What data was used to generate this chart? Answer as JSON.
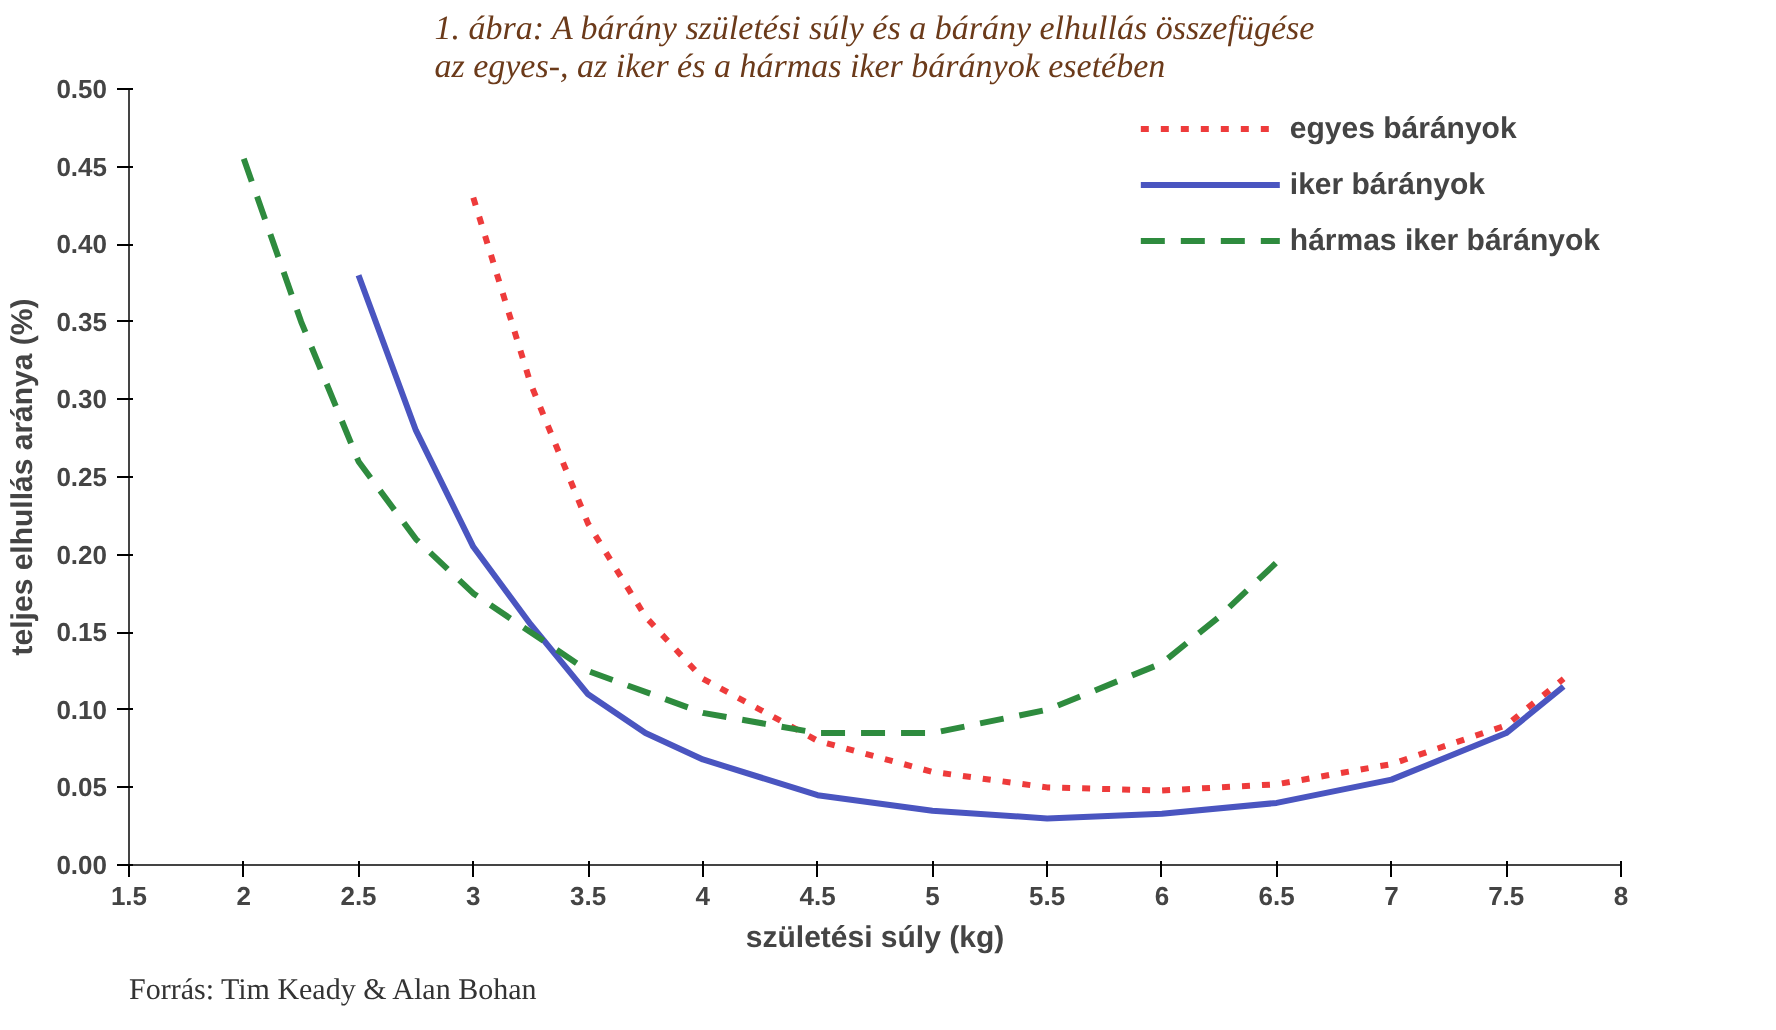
{
  "chart_data": {
    "type": "line",
    "title": "1. ábra: A bárány születési súly és a bárány elhullás összefügése\naz egyes-, az iker és a hármas iker bárányok esetében",
    "xlabel": "születési súly (kg)",
    "ylabel": "teljes elhullás aránya (%)",
    "annotations": [
      "Forrás: Tim Keady & Alan Bohan"
    ],
    "xlim": [
      1.5,
      8
    ],
    "xticks": [
      1.5,
      2,
      2.5,
      3,
      3.5,
      4,
      4.5,
      5,
      5.5,
      6,
      6.5,
      7,
      7.5,
      8
    ],
    "ylim": [
      0,
      0.5
    ],
    "yticks": [
      {
        "value": 0,
        "label": "0.00"
      },
      {
        "value": 0.05,
        "label": "0.05"
      },
      {
        "value": 0.1,
        "label": "0.10"
      },
      {
        "value": 0.15,
        "label": "0.15"
      },
      {
        "value": 0.2,
        "label": "0.20"
      },
      {
        "value": 0.25,
        "label": "0.25"
      },
      {
        "value": 0.3,
        "label": "0.30"
      },
      {
        "value": 0.35,
        "label": "0.35"
      },
      {
        "value": 0.4,
        "label": "0.40"
      },
      {
        "value": 0.45,
        "label": "0.45"
      },
      {
        "value": 0.5,
        "label": "0.50"
      }
    ],
    "grid": false,
    "legend": "top right",
    "series": [
      {
        "name": "egyes bárányok",
        "color": "#ee3b3b",
        "line_style": "dotted",
        "x": [
          3,
          3.25,
          3.5,
          3.75,
          4,
          4.5,
          5,
          5.5,
          6,
          6.5,
          7,
          7.5,
          7.75
        ],
        "values": [
          0.43,
          0.31,
          0.22,
          0.16,
          0.12,
          0.08,
          0.06,
          0.05,
          0.048,
          0.052,
          0.065,
          0.09,
          0.12
        ]
      },
      {
        "name": "iker bárányok",
        "color": "#4a55c0",
        "line_style": "solid",
        "x": [
          2.5,
          2.75,
          3,
          3.25,
          3.5,
          3.75,
          4,
          4.5,
          5,
          5.5,
          6,
          6.5,
          7,
          7.5,
          7.75
        ],
        "values": [
          0.38,
          0.28,
          0.205,
          0.155,
          0.11,
          0.085,
          0.068,
          0.045,
          0.035,
          0.03,
          0.033,
          0.04,
          0.055,
          0.085,
          0.115
        ]
      },
      {
        "name": "hármas iker bárányok",
        "color": "#2e8b3e",
        "line_style": "dashed",
        "x": [
          2,
          2.25,
          2.5,
          2.75,
          3,
          3.5,
          4,
          4.5,
          5,
          5.5,
          6,
          6.25,
          6.5
        ],
        "values": [
          0.455,
          0.35,
          0.26,
          0.21,
          0.175,
          0.125,
          0.098,
          0.085,
          0.085,
          0.1,
          0.13,
          0.16,
          0.195
        ]
      }
    ]
  }
}
